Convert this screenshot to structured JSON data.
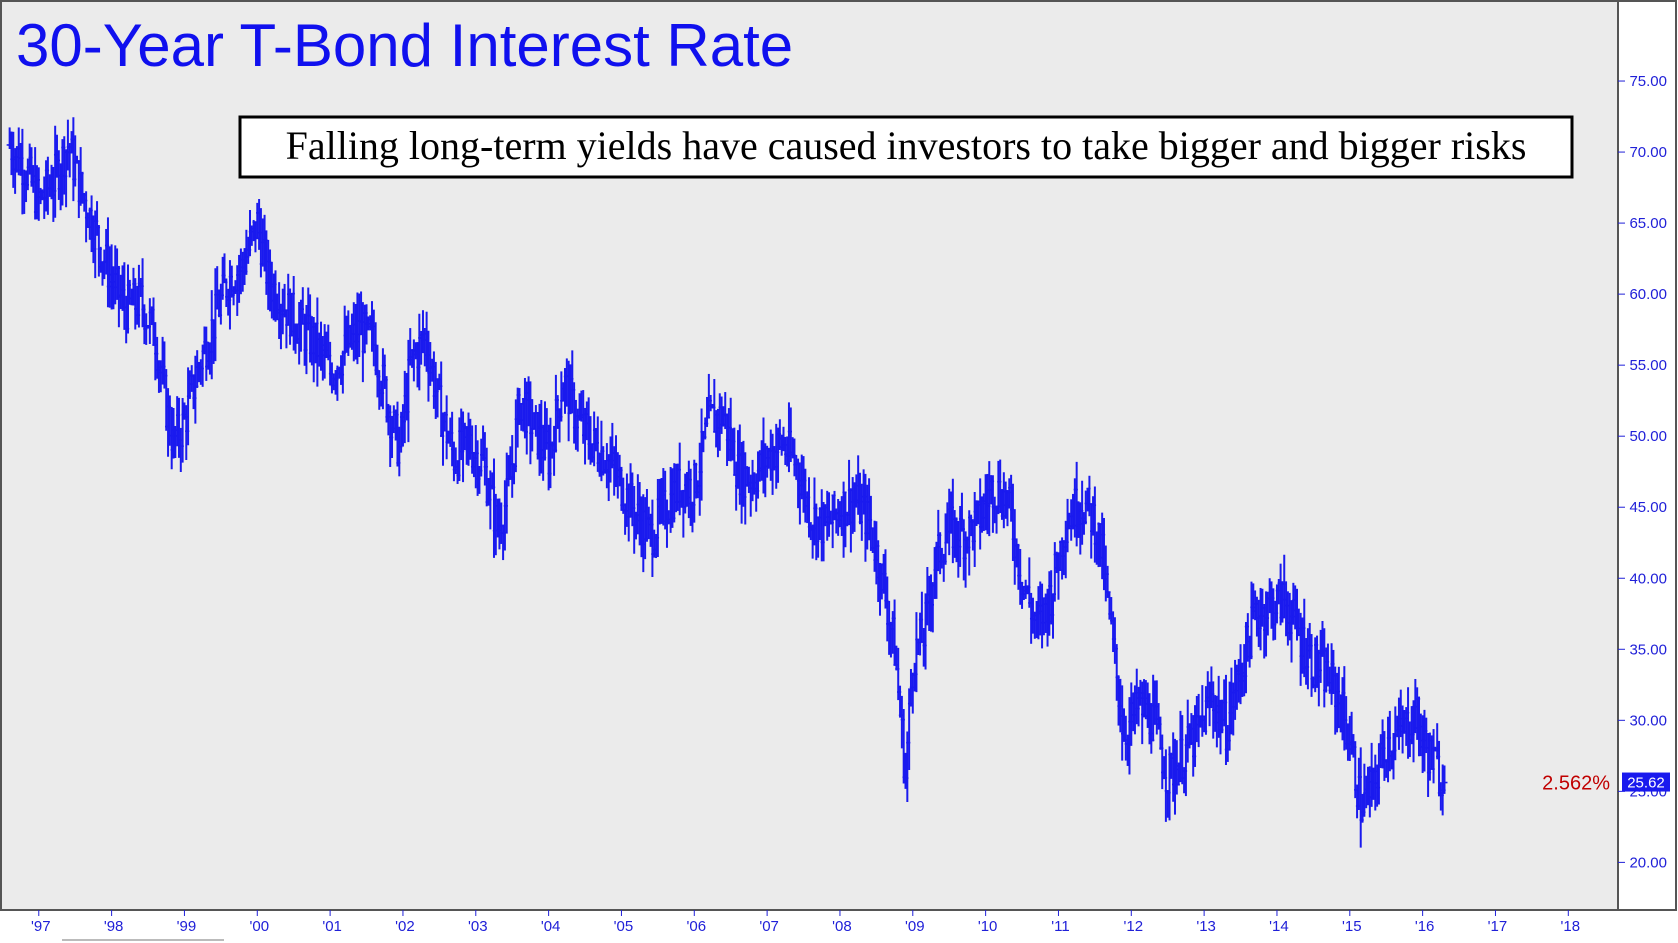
{
  "chart_data": {
    "type": "line",
    "style": "ohlc-bars",
    "title": "30-Year T-Bond Interest Rate",
    "annotation": "Falling long-term yields have caused investors to take bigger and bigger risks",
    "price_label": "2.562%",
    "last_value_label": "25.62",
    "x_tick_labels": [
      "'97",
      "'98",
      "'99",
      "'00",
      "'01",
      "'02",
      "'03",
      "'04",
      "'05",
      "'06",
      "'07",
      "'08",
      "'09",
      "'10",
      "'11",
      "'12",
      "'13",
      "'14",
      "'15",
      "'16",
      "'17",
      "'18"
    ],
    "y_tick_labels": [
      "20.00",
      "25.00",
      "30.00",
      "35.00",
      "40.00",
      "45.00",
      "50.00",
      "55.00",
      "60.00",
      "65.00",
      "70.00",
      "75.00"
    ],
    "ylim": [
      17,
      80
    ],
    "xlim": [
      1996.55,
      2018.6
    ],
    "grid": false,
    "series": [
      {
        "color": "#1a1aee",
        "x": [
          1996.6,
          1996.8,
          1997.0,
          1997.2,
          1997.4,
          1997.6,
          1997.8,
          1998.0,
          1998.2,
          1998.4,
          1998.6,
          1998.75,
          1998.85,
          1999.0,
          1999.2,
          1999.4,
          1999.6,
          1999.8,
          2000.0,
          2000.15,
          2000.4,
          2000.6,
          2000.8,
          2001.0,
          2001.2,
          2001.4,
          2001.6,
          2001.8,
          2001.95,
          2002.1,
          2002.3,
          2002.5,
          2002.7,
          2002.9,
          2003.1,
          2003.3,
          2003.45,
          2003.6,
          2003.8,
          2004.0,
          2004.2,
          2004.4,
          2004.6,
          2004.8,
          2005.0,
          2005.2,
          2005.4,
          2005.6,
          2005.8,
          2006.0,
          2006.2,
          2006.4,
          2006.6,
          2006.8,
          2007.0,
          2007.2,
          2007.4,
          2007.6,
          2007.8,
          2008.0,
          2008.2,
          2008.4,
          2008.6,
          2008.75,
          2008.9,
          2009.0,
          2009.15,
          2009.3,
          2009.5,
          2009.7,
          2009.9,
          2010.1,
          2010.3,
          2010.5,
          2010.7,
          2010.9,
          2011.1,
          2011.3,
          2011.5,
          2011.6,
          2011.75,
          2011.9,
          2012.1,
          2012.3,
          2012.5,
          2012.7,
          2012.9,
          2013.1,
          2013.3,
          2013.5,
          2013.7,
          2013.9,
          2014.1,
          2014.3,
          2014.5,
          2014.7,
          2014.85,
          2015.0,
          2015.15,
          2015.3,
          2015.5,
          2015.7,
          2015.9,
          2016.0,
          2016.15,
          2016.3
        ],
        "y": [
          70.5,
          69.0,
          66.5,
          68.0,
          70.5,
          67.0,
          64.0,
          61.0,
          59.0,
          59.5,
          57.0,
          52.0,
          49.5,
          51.0,
          55.0,
          58.0,
          61.0,
          62.0,
          65.0,
          61.0,
          59.0,
          57.5,
          56.5,
          54.5,
          56.0,
          57.5,
          56.5,
          52.0,
          49.0,
          55.0,
          57.0,
          52.0,
          48.5,
          49.5,
          48.0,
          43.5,
          46.0,
          52.5,
          50.5,
          48.5,
          54.0,
          51.0,
          49.5,
          48.5,
          46.5,
          44.5,
          43.0,
          45.0,
          46.5,
          46.5,
          51.0,
          51.5,
          47.5,
          47.0,
          48.5,
          49.5,
          48.0,
          44.5,
          43.5,
          45.0,
          45.5,
          44.0,
          39.5,
          35.0,
          26.0,
          34.5,
          36.0,
          41.0,
          43.5,
          43.0,
          44.0,
          46.5,
          45.5,
          40.0,
          36.5,
          39.0,
          44.0,
          45.5,
          44.0,
          41.5,
          35.0,
          29.0,
          31.0,
          30.0,
          26.0,
          27.5,
          29.0,
          31.5,
          29.5,
          33.5,
          37.5,
          38.0,
          38.5,
          36.0,
          34.0,
          33.0,
          31.5,
          28.5,
          24.0,
          25.0,
          28.5,
          29.0,
          30.5,
          28.5,
          27.0,
          25.62
        ]
      }
    ]
  }
}
